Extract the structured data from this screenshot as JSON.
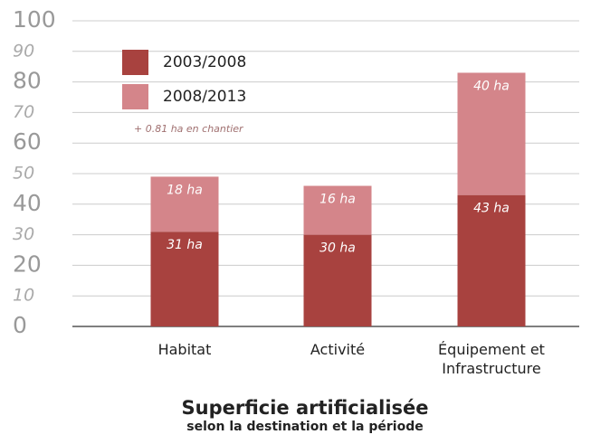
{
  "chart_data": {
    "type": "stacked_bar",
    "title": "Superficie artificialisée",
    "subtitle": "selon la destination et la période",
    "annotation": "+ 0.81 ha en chantier",
    "categories": [
      "Habitat",
      "Activité",
      "Équipement et Infrastructure"
    ],
    "series": [
      {
        "name": "2003/2008",
        "color": "#a8423f",
        "values": [
          31,
          30,
          43
        ],
        "value_labels": [
          "31 ha",
          "30 ha",
          "43 ha"
        ]
      },
      {
        "name": "2008/2013",
        "color": "#d4858a",
        "values": [
          18,
          16,
          40
        ],
        "value_labels": [
          "18 ha",
          "16 ha",
          "40 ha"
        ]
      }
    ],
    "ylim": [
      0,
      100
    ],
    "yticks": [
      0,
      10,
      20,
      30,
      40,
      50,
      60,
      70,
      80,
      90,
      100
    ],
    "grid": true
  }
}
